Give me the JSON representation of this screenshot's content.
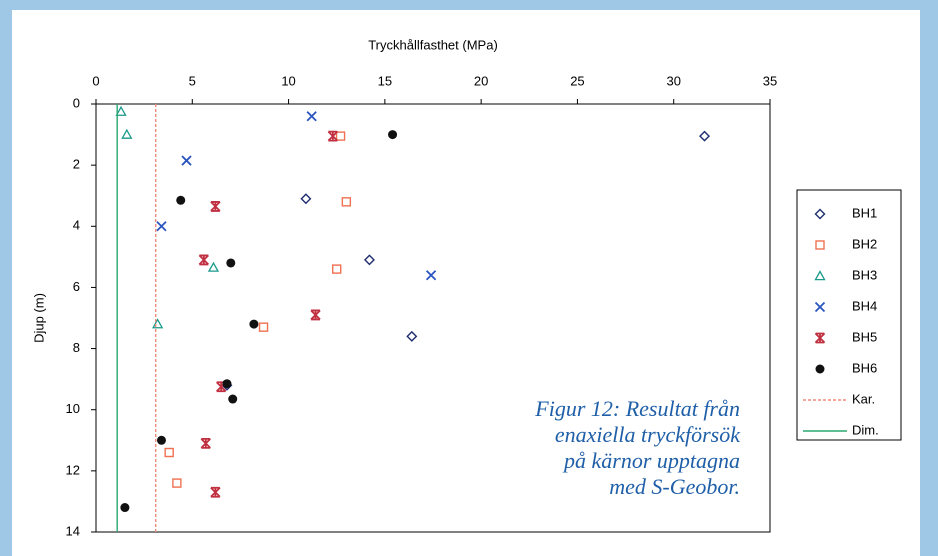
{
  "chart_data": {
    "type": "scatter",
    "x_label": "Tryckhållfasthet (MPa)",
    "y_label": "Djup (m)",
    "xlim": [
      0,
      35
    ],
    "xticks": [
      0,
      5,
      10,
      15,
      20,
      25,
      30,
      35
    ],
    "ylim": [
      0,
      14
    ],
    "yticks": [
      0,
      2,
      4,
      6,
      8,
      10,
      12,
      14
    ],
    "y_inverted": true,
    "x_axis_position": "top",
    "grid": false,
    "legend_position": "right",
    "annotation": [
      "Figur 12: Resultat från",
      "enaxiella tryckförsök",
      "på kärnor upptagna",
      "med S-Geobor."
    ],
    "series": [
      {
        "name": "BH1",
        "color": "#1f2d6e",
        "marker": "diamond",
        "x": [
          31.6,
          10.9,
          14.2,
          16.4,
          6.8
        ],
        "values": [
          1.05,
          3.1,
          5.1,
          7.6,
          9.2
        ]
      },
      {
        "name": "BH2",
        "color": "#f07050",
        "marker": "square",
        "x": [
          12.7,
          13.0,
          12.5,
          8.7,
          3.8,
          4.2
        ],
        "values": [
          1.05,
          3.2,
          5.4,
          7.3,
          11.4,
          12.4
        ]
      },
      {
        "name": "BH3",
        "color": "#1a9a8a",
        "marker": "triangle",
        "x": [
          1.3,
          1.6,
          6.1,
          3.2
        ],
        "values": [
          0.25,
          1.0,
          5.35,
          7.2
        ]
      },
      {
        "name": "BH4",
        "color": "#2a55c0",
        "marker": "cross",
        "x": [
          11.2,
          4.7,
          3.4,
          17.4
        ],
        "values": [
          0.4,
          1.85,
          4.0,
          5.6
        ]
      },
      {
        "name": "BH5",
        "color": "#c03040",
        "marker": "star",
        "x": [
          12.3,
          6.2,
          5.6,
          11.4,
          6.5,
          5.7,
          6.2
        ],
        "values": [
          1.05,
          3.35,
          5.1,
          6.9,
          9.25,
          11.1,
          12.7
        ]
      },
      {
        "name": "BH6",
        "color": "#111111",
        "marker": "circle",
        "x": [
          15.4,
          4.4,
          7.0,
          8.2,
          6.8,
          7.1,
          3.4,
          1.5
        ],
        "values": [
          1.0,
          3.15,
          5.2,
          7.2,
          9.15,
          9.65,
          11.0,
          13.2
        ]
      },
      {
        "name": "Kar.",
        "color": "#f08a7a",
        "marker": "line-dashed",
        "x": [
          3.1,
          3.1
        ],
        "values": [
          0,
          14
        ]
      },
      {
        "name": "Dim.",
        "color": "#2aa870",
        "marker": "line",
        "x": [
          1.1,
          1.1
        ],
        "values": [
          0,
          14
        ]
      }
    ]
  }
}
